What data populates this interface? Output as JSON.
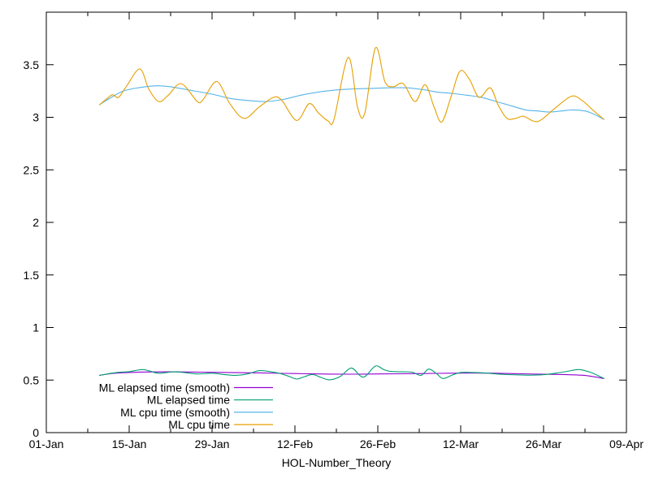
{
  "window": {
    "background": "#ffffff",
    "text_color": "#000000",
    "axis_color": "#000000"
  },
  "chart_data": {
    "type": "line",
    "title": "",
    "xlabel": "HOL-Number_Theory",
    "ylabel": "",
    "grid": false,
    "legend_position": "inside-bottom-left",
    "x_axis": {
      "unit": "days-from-01-Jan",
      "range_days": [
        0,
        98
      ],
      "major_ticks": [
        {
          "day": 0,
          "label": "01-Jan"
        },
        {
          "day": 14,
          "label": "15-Jan"
        },
        {
          "day": 28,
          "label": "29-Jan"
        },
        {
          "day": 42,
          "label": "12-Feb"
        },
        {
          "day": 56,
          "label": "26-Feb"
        },
        {
          "day": 70,
          "label": "12-Mar"
        },
        {
          "day": 84,
          "label": "26-Mar"
        },
        {
          "day": 98,
          "label": "09-Apr"
        }
      ],
      "minor_tick_days": [
        7,
        21,
        35,
        49,
        63,
        77,
        91
      ]
    },
    "y_axis": {
      "range": [
        0,
        4
      ],
      "major_ticks": [
        {
          "value": 0,
          "label": "0"
        },
        {
          "value": 0.5,
          "label": "0.5"
        },
        {
          "value": 1,
          "label": "1"
        },
        {
          "value": 1.5,
          "label": "1.5"
        },
        {
          "value": 2,
          "label": "2"
        },
        {
          "value": 2.5,
          "label": "2.5"
        },
        {
          "value": 3,
          "label": "3"
        },
        {
          "value": 3.5,
          "label": "3.5"
        }
      ]
    },
    "series": [
      {
        "name": "ML elapsed time (smooth)",
        "color": "#9400d3",
        "points": [
          [
            9,
            0.545
          ],
          [
            11,
            0.562
          ],
          [
            13,
            0.57
          ],
          [
            16,
            0.576
          ],
          [
            20,
            0.578
          ],
          [
            24,
            0.577
          ],
          [
            28,
            0.574
          ],
          [
            32,
            0.571
          ],
          [
            36,
            0.568
          ],
          [
            40,
            0.564
          ],
          [
            44,
            0.56
          ],
          [
            48,
            0.557
          ],
          [
            52,
            0.556
          ],
          [
            56,
            0.558
          ],
          [
            60,
            0.56
          ],
          [
            64,
            0.562
          ],
          [
            68,
            0.565
          ],
          [
            72,
            0.567
          ],
          [
            76,
            0.565
          ],
          [
            80,
            0.56
          ],
          [
            84,
            0.556
          ],
          [
            88,
            0.551
          ],
          [
            91,
            0.544
          ],
          [
            94.2,
            0.515
          ]
        ]
      },
      {
        "name": "ML elapsed time",
        "color": "#009e73",
        "points": [
          [
            9,
            0.545
          ],
          [
            11,
            0.565
          ],
          [
            12.5,
            0.575
          ],
          [
            14,
            0.58
          ],
          [
            16.2,
            0.6
          ],
          [
            17.5,
            0.585
          ],
          [
            19,
            0.565
          ],
          [
            21.5,
            0.578
          ],
          [
            23.5,
            0.57
          ],
          [
            25.5,
            0.558
          ],
          [
            28,
            0.565
          ],
          [
            30,
            0.553
          ],
          [
            32,
            0.545
          ],
          [
            34,
            0.558
          ],
          [
            36,
            0.59
          ],
          [
            38,
            0.578
          ],
          [
            39.5,
            0.562
          ],
          [
            41,
            0.535
          ],
          [
            42.3,
            0.51
          ],
          [
            43.6,
            0.532
          ],
          [
            45,
            0.553
          ],
          [
            46.4,
            0.525
          ],
          [
            47.8,
            0.503
          ],
          [
            49.6,
            0.532
          ],
          [
            51.5,
            0.615
          ],
          [
            53,
            0.542
          ],
          [
            53.9,
            0.536
          ],
          [
            55.6,
            0.633
          ],
          [
            57,
            0.6
          ],
          [
            58.2,
            0.582
          ],
          [
            60,
            0.578
          ],
          [
            61.8,
            0.575
          ],
          [
            63.3,
            0.545
          ],
          [
            64.6,
            0.605
          ],
          [
            65.9,
            0.562
          ],
          [
            67,
            0.515
          ],
          [
            68.6,
            0.548
          ],
          [
            70,
            0.572
          ],
          [
            72,
            0.572
          ],
          [
            74,
            0.568
          ],
          [
            76,
            0.558
          ],
          [
            78,
            0.552
          ],
          [
            80,
            0.549
          ],
          [
            82,
            0.547
          ],
          [
            84,
            0.551
          ],
          [
            86,
            0.565
          ],
          [
            88,
            0.583
          ],
          [
            90,
            0.6
          ],
          [
            92,
            0.572
          ],
          [
            94.2,
            0.515
          ]
        ]
      },
      {
        "name": "ML cpu time (smooth)",
        "color": "#56b4e9",
        "points": [
          [
            9,
            3.12
          ],
          [
            11,
            3.19
          ],
          [
            13,
            3.25
          ],
          [
            15.5,
            3.28
          ],
          [
            18.5,
            3.3
          ],
          [
            21,
            3.29
          ],
          [
            24,
            3.26
          ],
          [
            28,
            3.22
          ],
          [
            31,
            3.18
          ],
          [
            34,
            3.16
          ],
          [
            37,
            3.15
          ],
          [
            40,
            3.17
          ],
          [
            43,
            3.21
          ],
          [
            46,
            3.24
          ],
          [
            49,
            3.26
          ],
          [
            52,
            3.27
          ],
          [
            55,
            3.275
          ],
          [
            58,
            3.28
          ],
          [
            61,
            3.28
          ],
          [
            64,
            3.26
          ],
          [
            66,
            3.24
          ],
          [
            68,
            3.23
          ],
          [
            71,
            3.21
          ],
          [
            73.5,
            3.19
          ],
          [
            76,
            3.15
          ],
          [
            78.5,
            3.11
          ],
          [
            81,
            3.07
          ],
          [
            83,
            3.06
          ],
          [
            85,
            3.05
          ],
          [
            87,
            3.06
          ],
          [
            89,
            3.07
          ],
          [
            91,
            3.06
          ],
          [
            92.5,
            3.03
          ],
          [
            94.2,
            2.98
          ]
        ]
      },
      {
        "name": "ML cpu time",
        "color": "#e69f00",
        "points": [
          [
            9,
            3.12
          ],
          [
            10.3,
            3.18
          ],
          [
            11.2,
            3.215
          ],
          [
            12.2,
            3.19
          ],
          [
            13.6,
            3.3
          ],
          [
            15.8,
            3.46
          ],
          [
            17.3,
            3.27
          ],
          [
            19,
            3.15
          ],
          [
            20.6,
            3.21
          ],
          [
            22.8,
            3.32
          ],
          [
            25.5,
            3.15
          ],
          [
            26.5,
            3.17
          ],
          [
            28.8,
            3.34
          ],
          [
            31,
            3.13
          ],
          [
            33.4,
            2.99
          ],
          [
            36,
            3.1
          ],
          [
            38.4,
            3.19
          ],
          [
            39.8,
            3.16
          ],
          [
            42.3,
            2.97
          ],
          [
            44.4,
            3.13
          ],
          [
            46,
            3.04
          ],
          [
            47.6,
            2.965
          ],
          [
            48.6,
            2.98
          ],
          [
            51,
            3.57
          ],
          [
            52.6,
            3.09
          ],
          [
            53.8,
            3.04
          ],
          [
            55.6,
            3.66
          ],
          [
            57.2,
            3.34
          ],
          [
            58.6,
            3.29
          ],
          [
            60.3,
            3.32
          ],
          [
            62.3,
            3.15
          ],
          [
            64,
            3.31
          ],
          [
            65.5,
            3.1
          ],
          [
            66.8,
            2.955
          ],
          [
            68.4,
            3.2
          ],
          [
            69.9,
            3.44
          ],
          [
            71.5,
            3.36
          ],
          [
            73.1,
            3.19
          ],
          [
            75,
            3.28
          ],
          [
            76.3,
            3.12
          ],
          [
            77.8,
            2.99
          ],
          [
            79.3,
            2.99
          ],
          [
            80.6,
            3.01
          ],
          [
            83,
            2.96
          ],
          [
            85.8,
            3.08
          ],
          [
            88.7,
            3.2
          ],
          [
            90.5,
            3.16
          ],
          [
            92.5,
            3.06
          ],
          [
            94.2,
            2.98
          ]
        ]
      }
    ]
  }
}
